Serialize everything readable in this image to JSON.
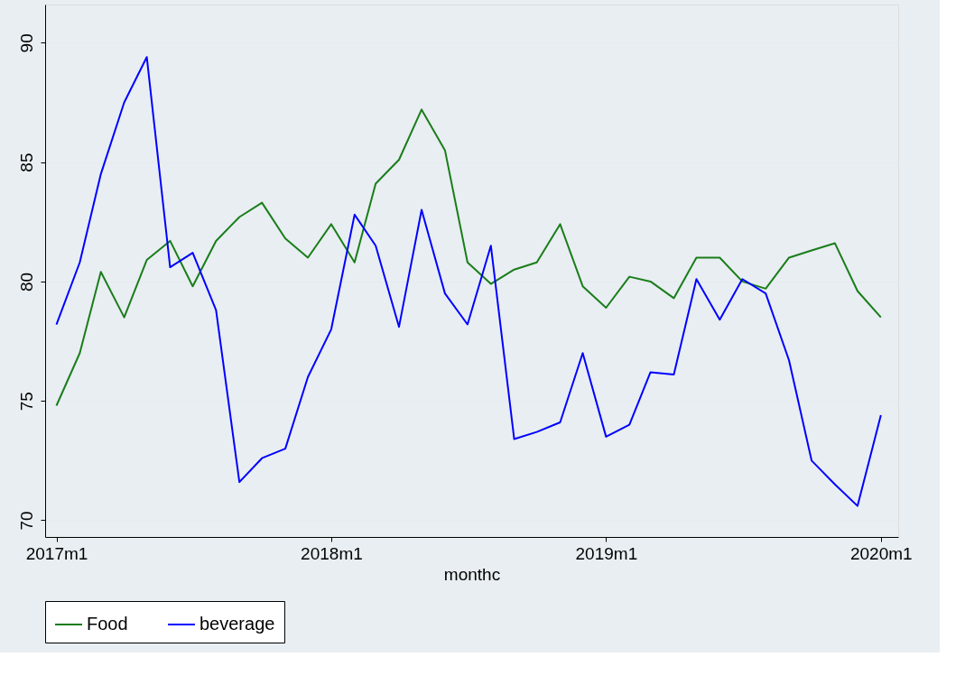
{
  "chart_data": {
    "type": "line",
    "xlabel": "monthc",
    "x": [
      "2017-01",
      "2017-02",
      "2017-03",
      "2017-04",
      "2017-05",
      "2017-06",
      "2017-07",
      "2017-08",
      "2017-09",
      "2017-10",
      "2017-11",
      "2017-12",
      "2018-01",
      "2018-02",
      "2018-03",
      "2018-04",
      "2018-05",
      "2018-06",
      "2018-07",
      "2018-08",
      "2018-09",
      "2018-10",
      "2018-11",
      "2018-12",
      "2019-01",
      "2019-02",
      "2019-03",
      "2019-04",
      "2019-05",
      "2019-06",
      "2019-07",
      "2019-08",
      "2019-09",
      "2019-10",
      "2019-11",
      "2019-12",
      "2020-01"
    ],
    "series": [
      {
        "name": "Food",
        "color": "#1a7d1a",
        "values": [
          74.8,
          77.0,
          80.4,
          78.5,
          80.9,
          81.7,
          79.8,
          81.7,
          82.7,
          83.3,
          81.8,
          81.0,
          82.4,
          80.8,
          84.1,
          85.1,
          87.2,
          85.5,
          80.8,
          79.9,
          80.5,
          80.8,
          82.4,
          79.8,
          78.9,
          80.2,
          80.0,
          79.3,
          81.0,
          81.0,
          80.0,
          79.7,
          81.0,
          81.3,
          81.6,
          79.6,
          78.5
        ]
      },
      {
        "name": "beverage",
        "color": "#0000ff",
        "values": [
          78.2,
          80.8,
          84.5,
          87.5,
          89.4,
          80.6,
          81.2,
          78.8,
          71.6,
          72.6,
          73.0,
          76.0,
          78.0,
          82.8,
          81.5,
          78.1,
          83.0,
          79.5,
          78.2,
          81.5,
          73.4,
          73.7,
          74.1,
          77.0,
          73.5,
          74.0,
          76.2,
          76.1,
          80.1,
          78.4,
          80.1,
          79.5,
          76.7,
          72.5,
          71.5,
          70.6,
          74.4
        ]
      }
    ],
    "xlim": [
      "2016-12-17",
      "2020-01-24"
    ],
    "xticks": [
      {
        "value": "2017-01",
        "label": "2017m1"
      },
      {
        "value": "2018-01",
        "label": "2018m1"
      },
      {
        "value": "2019-01",
        "label": "2019m1"
      },
      {
        "value": "2020-01",
        "label": "2020m1"
      }
    ],
    "ylim": [
      69.3,
      91.6
    ],
    "yticks": [
      70,
      75,
      80,
      85,
      90
    ],
    "grid": "y",
    "legend": "bottom",
    "line_style": "solid",
    "marker": "none"
  }
}
